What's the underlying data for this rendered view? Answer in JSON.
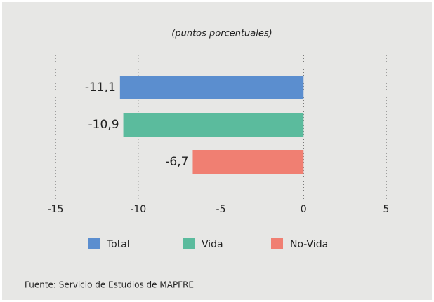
{
  "chart_data": {
    "type": "bar",
    "orientation": "horizontal",
    "subtitle": "(puntos porcentuales)",
    "categories": [
      "Total",
      "Vida",
      "No-Vida"
    ],
    "values": [
      -11.1,
      -10.9,
      -6.7
    ],
    "value_labels": [
      "-11,1",
      "-10,9",
      "-6,7"
    ],
    "colors": [
      "#5b8ecf",
      "#5bbb9d",
      "#f07f72"
    ],
    "xlim": [
      -15,
      5
    ],
    "xticks": [
      -15,
      -10,
      -5,
      0,
      5
    ],
    "grid": true,
    "legend": "bottom",
    "source": "Fuente: Servicio de Estudios de MAPFRE"
  }
}
